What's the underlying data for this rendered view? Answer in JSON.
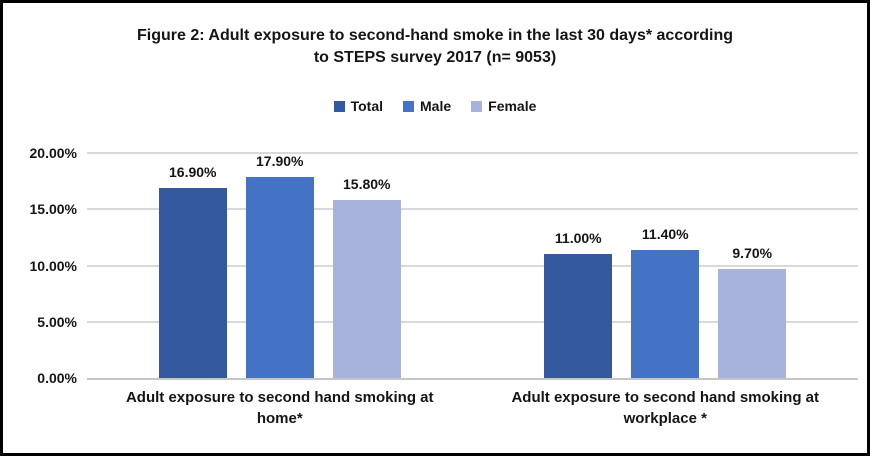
{
  "chart_data": {
    "type": "bar",
    "title": "Figure 2: Adult exposure to second-hand smoke in the last 30 days* according to STEPS survey 2017 (n= 9053)",
    "title_lines": [
      "Figure 2: Adult exposure to second-hand smoke in the last 30 days* according",
      "to STEPS survey 2017 (n= 9053)"
    ],
    "categories": [
      "Adult exposure to second hand smoking at home*",
      "Adult exposure to second hand smoking at workplace *"
    ],
    "series": [
      {
        "name": "Total",
        "color": "#34599F",
        "values": [
          16.9,
          11.0
        ],
        "labels": [
          "16.90%",
          "11.00%"
        ]
      },
      {
        "name": "Male",
        "color": "#4472C4",
        "values": [
          17.9,
          11.4
        ],
        "labels": [
          "17.90%",
          "11.40%"
        ]
      },
      {
        "name": "Female",
        "color": "#A7B3DC",
        "values": [
          15.8,
          9.7
        ],
        "labels": [
          "15.80%",
          "9.70%"
        ]
      }
    ],
    "y_axis": {
      "min": 0,
      "max": 20,
      "tick_values": [
        0,
        5,
        10,
        15,
        20
      ],
      "ticks": [
        "0.00%",
        "5.00%",
        "10.00%",
        "15.00%",
        "20.00%"
      ]
    },
    "legend_position": "top",
    "grid": true,
    "colors": {
      "gridline": "#d9d9d9",
      "axis_line": "#c6c6c6",
      "frame_border": "#000000",
      "text": "#151515"
    }
  }
}
